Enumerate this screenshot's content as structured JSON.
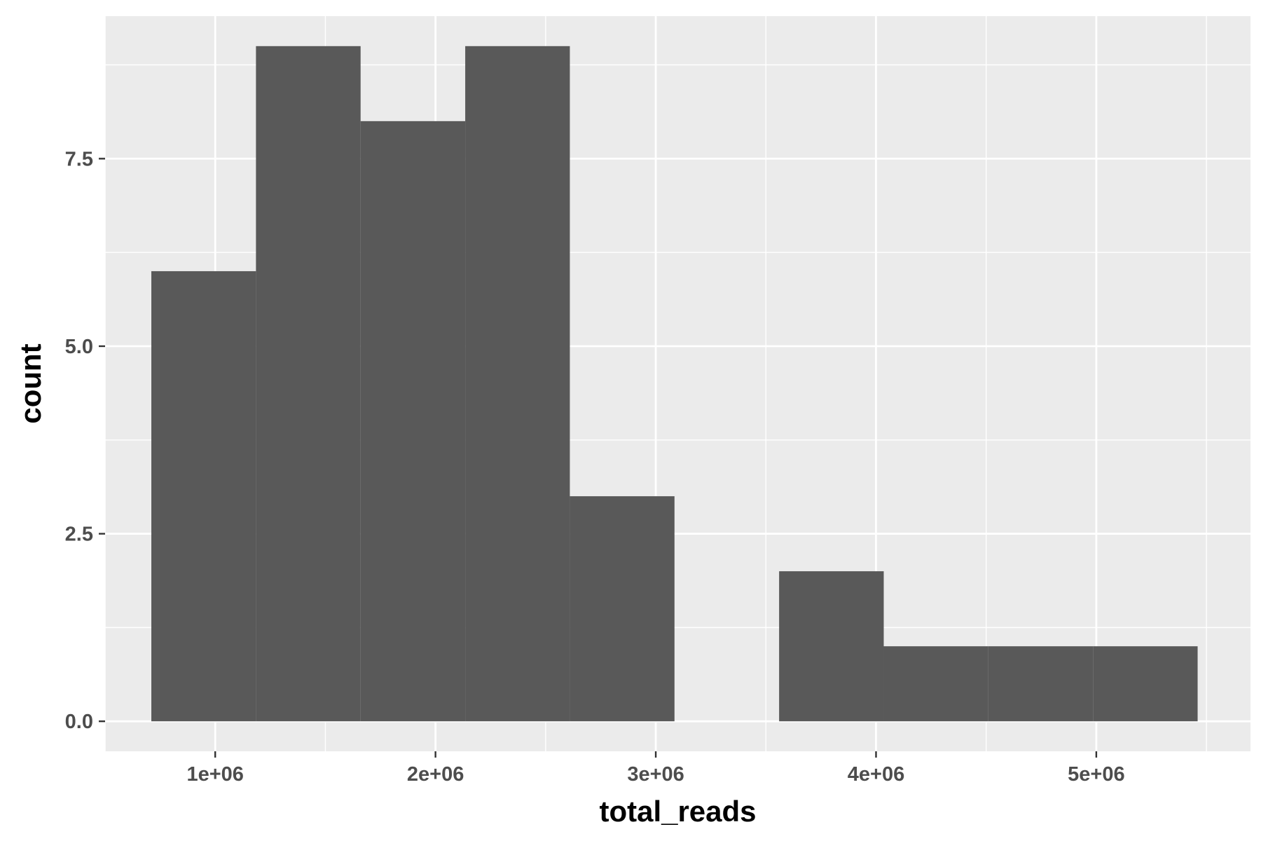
{
  "chart_data": {
    "type": "bar",
    "subtype": "histogram",
    "xlabel": "total_reads",
    "ylabel": "count",
    "xlim": [
      500000,
      5700000
    ],
    "ylim": [
      -0.4,
      9.4
    ],
    "x_ticks": [
      {
        "value": 1000000,
        "label": "1e+06"
      },
      {
        "value": 2000000,
        "label": "2e+06"
      },
      {
        "value": 3000000,
        "label": "3e+06"
      },
      {
        "value": 4000000,
        "label": "4e+06"
      },
      {
        "value": 5000000,
        "label": "5e+06"
      }
    ],
    "y_ticks": [
      {
        "value": 0,
        "label": "0.0"
      },
      {
        "value": 2.5,
        "label": "2.5"
      },
      {
        "value": 5,
        "label": "5.0"
      },
      {
        "value": 7.5,
        "label": "7.5"
      }
    ],
    "x_minor_ticks": [
      500000,
      1500000,
      2500000,
      3500000,
      4500000,
      5500000
    ],
    "y_minor_ticks": [
      1.25,
      3.75,
      6.25,
      8.75
    ],
    "bins": [
      {
        "x0": 710000,
        "x1": 1185000,
        "count": 6
      },
      {
        "x0": 1185000,
        "x1": 1660000,
        "count": 9
      },
      {
        "x0": 1660000,
        "x1": 2135000,
        "count": 8
      },
      {
        "x0": 2135000,
        "x1": 2610000,
        "count": 9
      },
      {
        "x0": 2610000,
        "x1": 3085000,
        "count": 3
      },
      {
        "x0": 3085000,
        "x1": 3560000,
        "count": 0
      },
      {
        "x0": 3560000,
        "x1": 4035000,
        "count": 2
      },
      {
        "x0": 4035000,
        "x1": 4510000,
        "count": 1
      },
      {
        "x0": 4510000,
        "x1": 4985000,
        "count": 1
      },
      {
        "x0": 4985000,
        "x1": 5460000,
        "count": 1
      }
    ],
    "grid": true,
    "legend": "none",
    "colors": {
      "panel_background": "#ebebeb",
      "grid_line": "#ffffff",
      "bar_fill": "#595959",
      "tick_label": "#4d4d4d",
      "tick_mark": "#333333",
      "axis_title": "#000000"
    }
  }
}
